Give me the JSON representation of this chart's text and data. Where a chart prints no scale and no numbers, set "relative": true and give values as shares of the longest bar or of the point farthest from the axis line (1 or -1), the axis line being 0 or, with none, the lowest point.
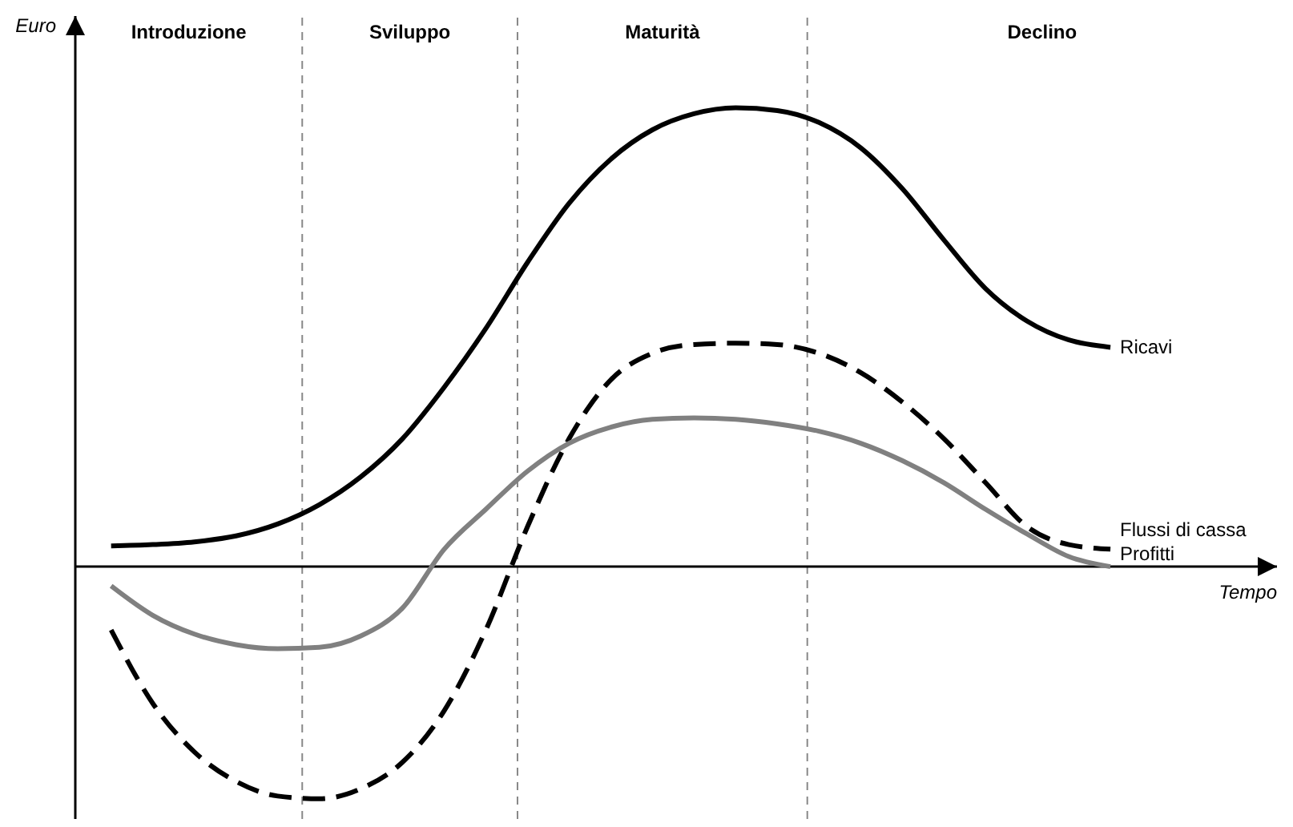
{
  "chart_data": {
    "type": "line",
    "relative": true,
    "xlabel": "Tempo",
    "ylabel": "Euro",
    "categories": [
      null,
      null,
      null,
      null,
      null,
      null,
      null,
      null,
      null,
      null,
      null,
      null,
      null,
      null,
      null,
      null,
      null,
      null,
      null,
      null,
      null,
      null,
      null,
      null,
      null
    ],
    "series": [
      {
        "name": "Ricavi",
        "color": "#000000",
        "line_style": "solid",
        "values": [
          0.045,
          0.048,
          0.054,
          0.067,
          0.093,
          0.135,
          0.196,
          0.279,
          0.391,
          0.519,
          0.663,
          0.792,
          0.888,
          0.952,
          0.987,
          1,
          0.994,
          0.968,
          0.913,
          0.824,
          0.712,
          0.606,
          0.535,
          0.494,
          0.478
        ]
      },
      {
        "name": "Flussi di cassa",
        "color": "#000000",
        "line_style": "dashed",
        "values": [
          -0.138,
          -0.298,
          -0.404,
          -0.468,
          -0.5,
          -0.506,
          -0.484,
          -0.426,
          -0.314,
          -0.138,
          0.087,
          0.279,
          0.407,
          0.465,
          0.484,
          0.487,
          0.484,
          0.465,
          0.423,
          0.359,
          0.279,
          0.183,
          0.087,
          0.048,
          0.038
        ]
      },
      {
        "name": "Profitti",
        "color": "#808080",
        "line_style": "solid",
        "values": [
          -0.042,
          -0.106,
          -0.147,
          -0.17,
          -0.179,
          -0.176,
          -0.151,
          -0.09,
          0.038,
          0.125,
          0.208,
          0.269,
          0.304,
          0.321,
          0.324,
          0.321,
          0.311,
          0.295,
          0.269,
          0.231,
          0.183,
          0.125,
          0.071,
          0.022,
          0
        ]
      }
    ],
    "annotations": [
      "Introduzione",
      "Sviluppo",
      "Maturità",
      "Declino"
    ]
  }
}
